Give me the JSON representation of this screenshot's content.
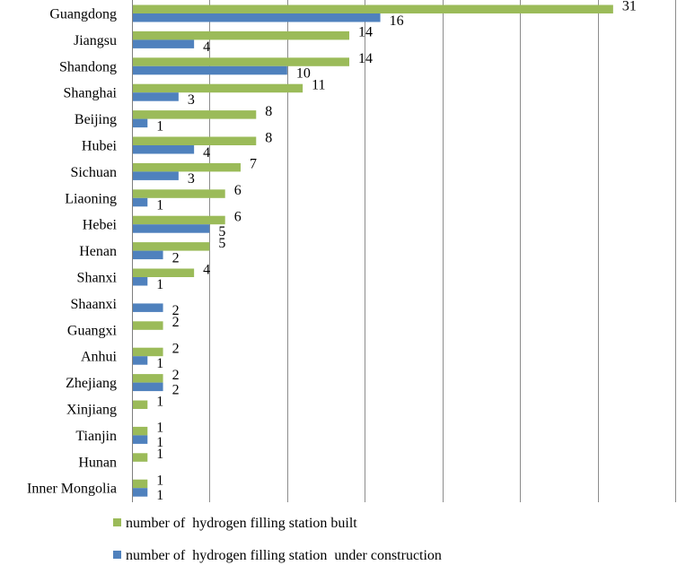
{
  "chart_data": {
    "type": "bar",
    "orientation": "horizontal",
    "categories": [
      "Guangdong",
      "Jiangsu",
      "Shandong",
      "Shanghai",
      "Beijing",
      "Hubei",
      "Sichuan",
      "Liaoning",
      "Hebei",
      "Henan",
      "Shanxi",
      "Shaanxi",
      "Guangxi",
      "Anhui",
      "Zhejiang",
      "Xinjiang",
      "Tianjin",
      "Hunan",
      "Inner Mongolia"
    ],
    "series": [
      {
        "name": "number of  hydrogen filling station built",
        "color": "#9bbb59",
        "values": [
          31,
          14,
          14,
          11,
          8,
          8,
          7,
          6,
          6,
          5,
          4,
          null,
          2,
          2,
          2,
          1,
          1,
          1,
          1
        ]
      },
      {
        "name": "number of  hydrogen filling station  under construction",
        "color": "#4f81bd",
        "values": [
          16,
          4,
          10,
          3,
          1,
          4,
          3,
          1,
          5,
          2,
          1,
          2,
          null,
          1,
          2,
          null,
          1,
          null,
          1
        ]
      }
    ],
    "xlim": [
      0,
      35
    ],
    "x_major_step": 5,
    "x_tick_labels_visible": false,
    "grid": "vertical",
    "legend_position": "bottom"
  }
}
